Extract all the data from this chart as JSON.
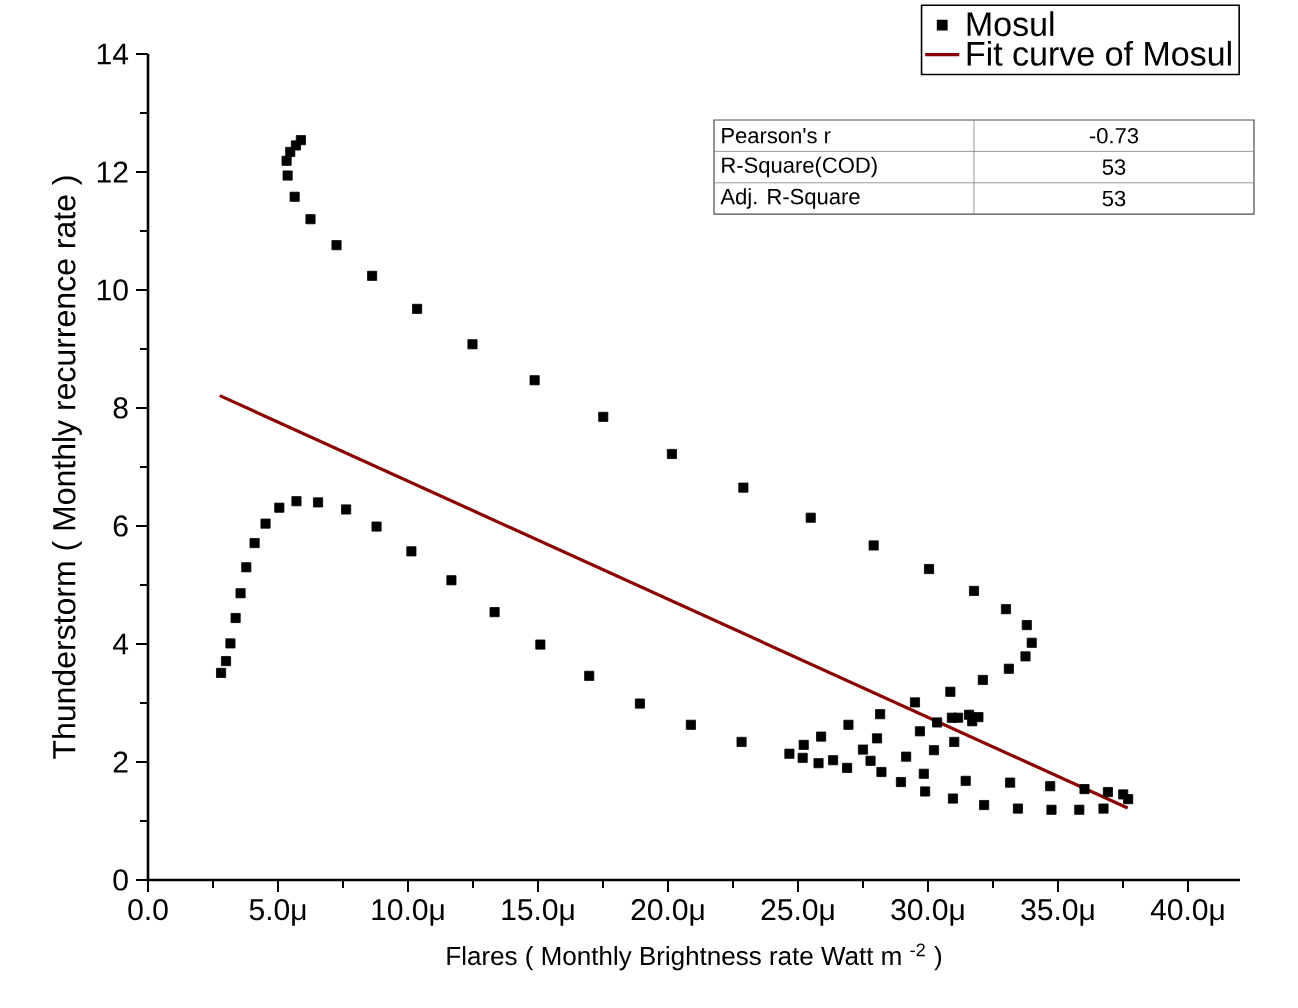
{
  "chart_data": {
    "type": "scatter",
    "xlabel": "Flares (  Monthly Brightness rate   Watt m $^{-2}$ )",
    "ylabel": "Thunderstorm ( Monthly recurrence rate )",
    "xlim": [
      0,
      42
    ],
    "ylim": [
      0,
      14
    ],
    "xticks": [
      {
        "value": 0,
        "label": "0.0"
      },
      {
        "value": 5,
        "label": "5.0μ"
      },
      {
        "value": 10,
        "label": "10.0μ"
      },
      {
        "value": 15,
        "label": "15.0μ"
      },
      {
        "value": 20,
        "label": "20.0μ"
      },
      {
        "value": 25,
        "label": "25.0μ"
      },
      {
        "value": 30,
        "label": "30.0μ"
      },
      {
        "value": 35,
        "label": "35.0μ"
      },
      {
        "value": 40,
        "label": "40.0μ"
      }
    ],
    "yticks": [
      0,
      2,
      4,
      6,
      8,
      10,
      12,
      14
    ],
    "legend": "top right",
    "annotations": [
      "Pearson's r",
      "-0.73",
      "R-Square(COD)",
      "53",
      "Adj. R-Square",
      "53"
    ],
    "series": [
      {
        "name": "Mosul",
        "color": "#000000",
        "marker": "square",
        "x": [
          2.81,
          3.0,
          3.17,
          3.37,
          3.56,
          3.78,
          4.1,
          4.52,
          5.05,
          5.71,
          6.54,
          7.62,
          8.79,
          10.13,
          11.67,
          13.33,
          15.09,
          16.97,
          18.92,
          20.88,
          22.83,
          24.67,
          25.18,
          25.22,
          25.79,
          25.89,
          26.35,
          26.89,
          26.94,
          27.5,
          27.79,
          28.04,
          28.16,
          28.21,
          28.96,
          29.16,
          29.5,
          29.69,
          29.84,
          29.89,
          30.23,
          30.35,
          30.92,
          30.96,
          31.01,
          31.16,
          31.45,
          31.58,
          31.7,
          31.94,
          32.16,
          33.16,
          33.46,
          34.7,
          34.75,
          35.82,
          36.02,
          36.75,
          36.92,
          37.51,
          37.7,
          5.88,
          5.69,
          5.47,
          5.33,
          5.37,
          5.64,
          6.25,
          7.25,
          8.62,
          10.35,
          12.48,
          14.87,
          17.51,
          20.15,
          22.9,
          25.49,
          27.91,
          30.04,
          31.77,
          33.0,
          33.8,
          33.99,
          33.75,
          33.11,
          32.11,
          30.86
        ],
        "values": [
          3.51,
          3.71,
          4.01,
          4.44,
          4.86,
          5.3,
          5.71,
          6.04,
          6.31,
          6.42,
          6.4,
          6.28,
          5.99,
          5.57,
          5.08,
          4.54,
          3.99,
          3.46,
          2.99,
          2.63,
          2.34,
          2.14,
          2.07,
          2.29,
          1.98,
          2.43,
          2.03,
          1.9,
          2.63,
          2.21,
          2.02,
          2.4,
          2.81,
          1.83,
          1.66,
          2.09,
          3.01,
          2.52,
          1.8,
          1.5,
          2.2,
          2.67,
          2.75,
          1.38,
          2.34,
          2.75,
          1.68,
          2.8,
          2.69,
          2.76,
          1.27,
          1.65,
          1.21,
          1.59,
          1.19,
          1.19,
          1.54,
          1.21,
          1.49,
          1.45,
          1.37,
          12.54,
          12.45,
          12.34,
          12.19,
          11.94,
          11.58,
          11.2,
          10.76,
          10.24,
          9.68,
          9.08,
          8.47,
          7.85,
          7.22,
          6.65,
          6.14,
          5.67,
          5.27,
          4.9,
          4.59,
          4.32,
          4.02,
          3.79,
          3.58,
          3.39,
          3.19
        ]
      },
      {
        "name": "Fit curve of Mosul",
        "type": "line",
        "color": "#8b0000",
        "x": [
          2.76,
          37.68
        ],
        "values": [
          8.21,
          1.22
        ]
      }
    ]
  }
}
